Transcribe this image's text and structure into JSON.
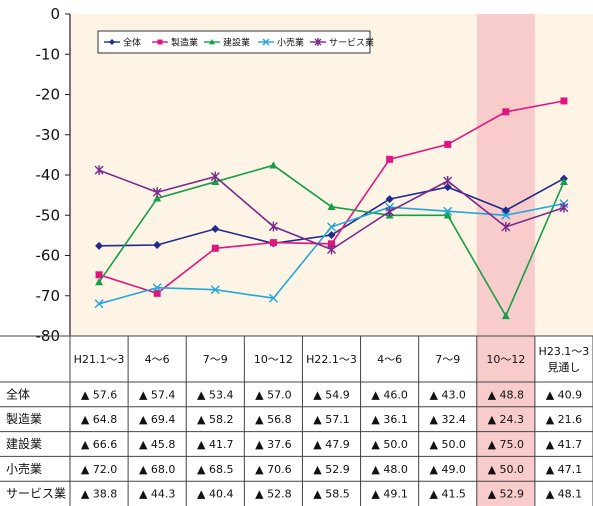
{
  "chart_data": {
    "type": "line",
    "title": "",
    "xlabel": "",
    "ylabel": "",
    "ylim": [
      -80,
      0
    ],
    "yticks": [
      0,
      -10,
      -20,
      -30,
      -40,
      -50,
      -60,
      -70,
      -80
    ],
    "categories": [
      [
        "H21.1～3"
      ],
      [
        "4～6"
      ],
      [
        "7～9"
      ],
      [
        "10～12"
      ],
      [
        "H22.1～3"
      ],
      [
        "4～6"
      ],
      [
        "7～9"
      ],
      [
        "10～12"
      ],
      [
        "H23.1～3",
        "見通し"
      ]
    ],
    "highlight_index": 7,
    "legend_position": "top-left",
    "series": [
      {
        "name": "全体",
        "color": "#1f2a8c",
        "marker": "diamond",
        "values": [
          -57.6,
          -57.4,
          -53.4,
          -57.0,
          -54.9,
          -46.0,
          -43.0,
          -48.8,
          -40.9
        ],
        "labels": [
          "▲ 57.6",
          "▲ 57.4",
          "▲ 53.4",
          "▲ 57.0",
          "▲ 54.9",
          "▲ 46.0",
          "▲ 43.0",
          "▲ 48.8",
          "▲ 40.9"
        ]
      },
      {
        "name": "製造業",
        "color": "#e0167e",
        "marker": "square",
        "values": [
          -64.8,
          -69.4,
          -58.2,
          -56.8,
          -57.1,
          -36.1,
          -32.4,
          -24.3,
          -21.6
        ],
        "labels": [
          "▲ 64.8",
          "▲ 69.4",
          "▲ 58.2",
          "▲ 56.8",
          "▲ 57.1",
          "▲ 36.1",
          "▲ 32.4",
          "▲ 24.3",
          "▲ 21.6"
        ]
      },
      {
        "name": "建設業",
        "color": "#14a046",
        "marker": "triangle",
        "values": [
          -66.6,
          -45.8,
          -41.7,
          -37.6,
          -47.9,
          -50.0,
          -50.0,
          -75.0,
          -41.7
        ],
        "labels": [
          "▲ 66.6",
          "▲ 45.8",
          "▲ 41.7",
          "▲ 37.6",
          "▲ 47.9",
          "▲ 50.0",
          "▲ 50.0",
          "▲ 75.0",
          "▲ 41.7"
        ]
      },
      {
        "name": "小売業",
        "color": "#22a6dd",
        "marker": "x",
        "values": [
          -72.0,
          -68.0,
          -68.5,
          -70.6,
          -52.9,
          -48.0,
          -49.0,
          -50.0,
          -47.1
        ],
        "labels": [
          "▲ 72.0",
          "▲ 68.0",
          "▲ 68.5",
          "▲ 70.6",
          "▲ 52.9",
          "▲ 48.0",
          "▲ 49.0",
          "▲ 50.0",
          "▲ 47.1"
        ]
      },
      {
        "name": "サービス業",
        "color": "#7a2a8c",
        "marker": "asterisk",
        "values": [
          -38.8,
          -44.3,
          -40.4,
          -52.8,
          -58.5,
          -49.1,
          -41.5,
          -52.9,
          -48.1
        ],
        "labels": [
          "▲ 38.8",
          "▲ 44.3",
          "▲ 40.4",
          "▲ 52.8",
          "▲ 58.5",
          "▲ 49.1",
          "▲ 41.5",
          "▲ 52.9",
          "▲ 48.1"
        ]
      }
    ]
  },
  "colors": {
    "plot_background": "#fdf4e6",
    "highlight_band": "#f9cccc",
    "axis": "#222222",
    "grid": "#444444"
  }
}
